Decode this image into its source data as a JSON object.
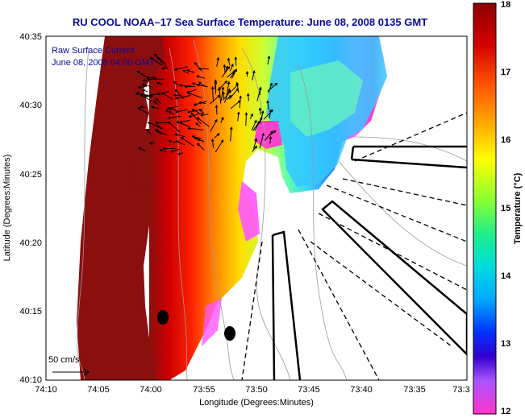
{
  "title": "RU COOL   NOAA–17  Sea Surface Temperature:  June 08, 2008 0135 GMT",
  "overlay": {
    "line1": "Raw Surface Current",
    "line2": "June 08, 2008 04:00 GMT"
  },
  "scale_label": "50 cm/s",
  "x_axis": {
    "label": "Longitude (Degrees:Minutes)",
    "ticks": [
      "74:10",
      "74:05",
      "74:00",
      "73:55",
      "73:50",
      "73:45",
      "73:40",
      "73:35",
      "73:3"
    ]
  },
  "y_axis": {
    "label": "Latitude (Degrees:Minutes)",
    "ticks": [
      "40:35",
      "40:30",
      "40:25",
      "40:20",
      "40:15",
      "40:10"
    ]
  },
  "colorbar": {
    "label": "Temperature (°C)",
    "ticks": [
      "18",
      "17",
      "16",
      "15",
      "14",
      "13",
      "12"
    ]
  },
  "colors": {
    "title": "#0a0a9a",
    "land": "#8b0f0f",
    "cloud": "#ffffff"
  }
}
